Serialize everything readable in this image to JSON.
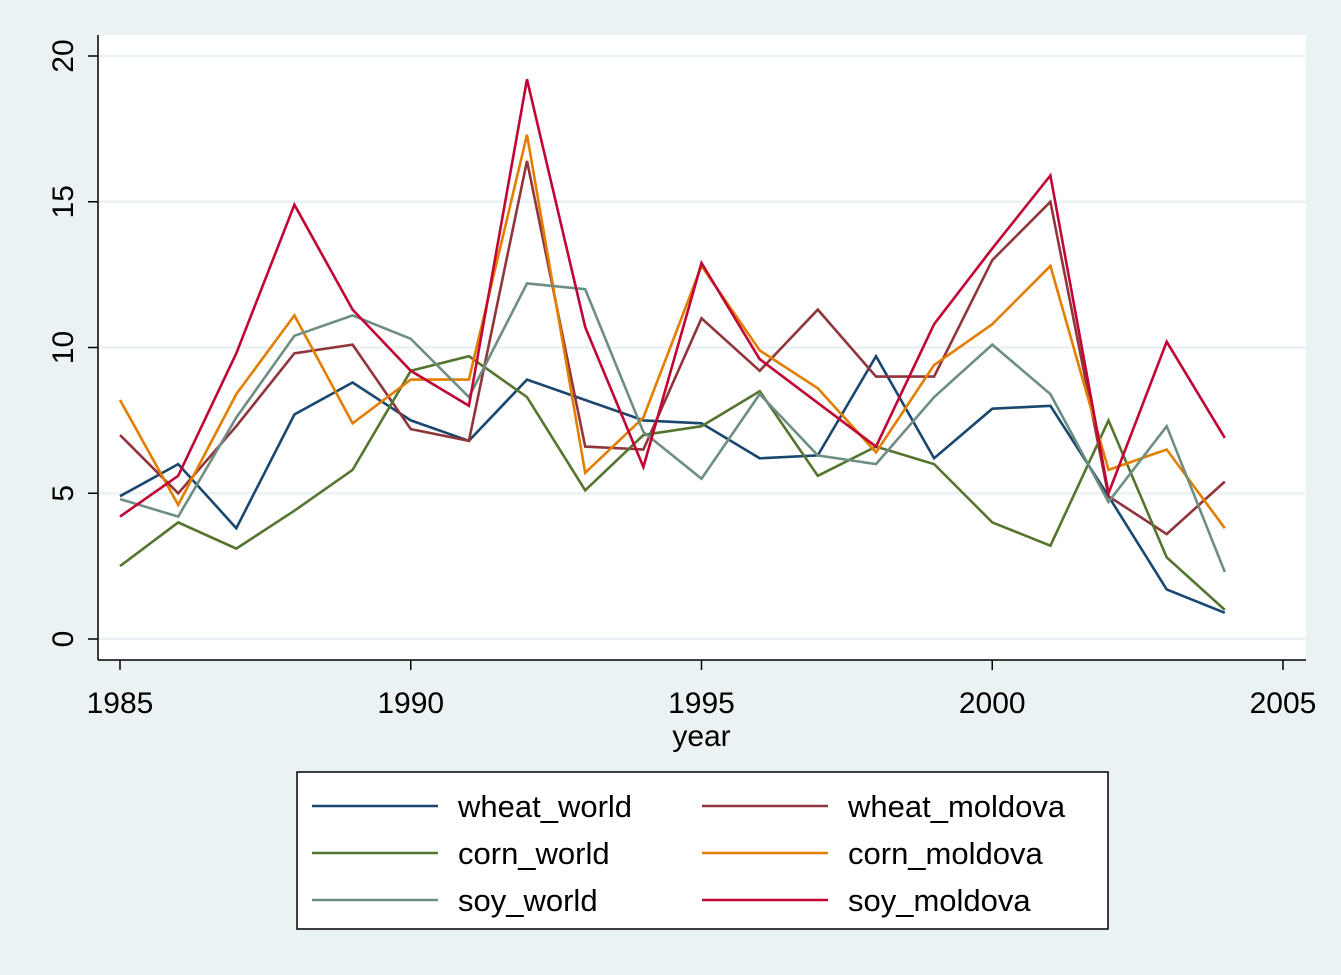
{
  "chart_data": {
    "type": "line",
    "title": "",
    "xlabel": "year",
    "ylabel": "",
    "xlim": [
      1985,
      2005
    ],
    "ylim": [
      0,
      20
    ],
    "x_ticks": [
      "1985",
      "1990",
      "1995",
      "2000",
      "2005"
    ],
    "y_ticks": [
      "0",
      "5",
      "10",
      "15",
      "20"
    ],
    "grid": true,
    "legend_position": "bottom",
    "x": [
      1985,
      1986,
      1987,
      1988,
      1989,
      1990,
      1991,
      1992,
      1993,
      1994,
      1995,
      1996,
      1997,
      1998,
      1999,
      2000,
      2001,
      2002,
      2003,
      2004
    ],
    "series": [
      {
        "name": "wheat_world",
        "color": "#1a476f",
        "values": [
          4.9,
          6.0,
          3.8,
          7.7,
          8.8,
          7.5,
          6.8,
          8.9,
          8.2,
          7.5,
          7.4,
          6.2,
          6.3,
          9.7,
          6.2,
          7.9,
          8.0,
          4.9,
          1.7,
          0.9
        ]
      },
      {
        "name": "wheat_moldova",
        "color": "#90353b",
        "values": [
          7.0,
          5.0,
          7.3,
          9.8,
          10.1,
          7.2,
          6.8,
          16.4,
          6.6,
          6.5,
          11.0,
          9.2,
          11.3,
          9.0,
          9.0,
          13.0,
          15.0,
          4.9,
          3.6,
          5.4
        ]
      },
      {
        "name": "corn_world",
        "color": "#55752f",
        "values": [
          2.5,
          4.0,
          3.1,
          4.4,
          5.8,
          9.2,
          9.7,
          8.3,
          5.1,
          7.0,
          7.3,
          8.5,
          5.6,
          6.6,
          6.0,
          4.0,
          3.2,
          7.5,
          2.8,
          1.0
        ]
      },
      {
        "name": "corn_moldova",
        "color": "#e37e00",
        "values": [
          8.2,
          4.6,
          8.4,
          11.1,
          7.4,
          8.9,
          8.9,
          17.3,
          5.7,
          7.6,
          12.8,
          9.9,
          8.6,
          6.4,
          9.4,
          10.8,
          12.8,
          5.8,
          6.5,
          3.8
        ]
      },
      {
        "name": "soy_world",
        "color": "#6e8e84",
        "values": [
          4.8,
          4.2,
          7.6,
          10.4,
          11.1,
          10.3,
          8.3,
          12.2,
          12.0,
          7.1,
          5.5,
          8.4,
          6.3,
          6.0,
          8.3,
          10.1,
          8.4,
          4.7,
          7.3,
          2.3
        ]
      },
      {
        "name": "soy_moldova",
        "color": "#c10534",
        "values": [
          4.2,
          5.6,
          9.8,
          14.9,
          11.3,
          9.2,
          8.0,
          19.2,
          10.7,
          5.9,
          12.9,
          9.6,
          8.1,
          6.6,
          10.8,
          13.4,
          15.9,
          5.0,
          10.2,
          6.9
        ]
      }
    ]
  }
}
